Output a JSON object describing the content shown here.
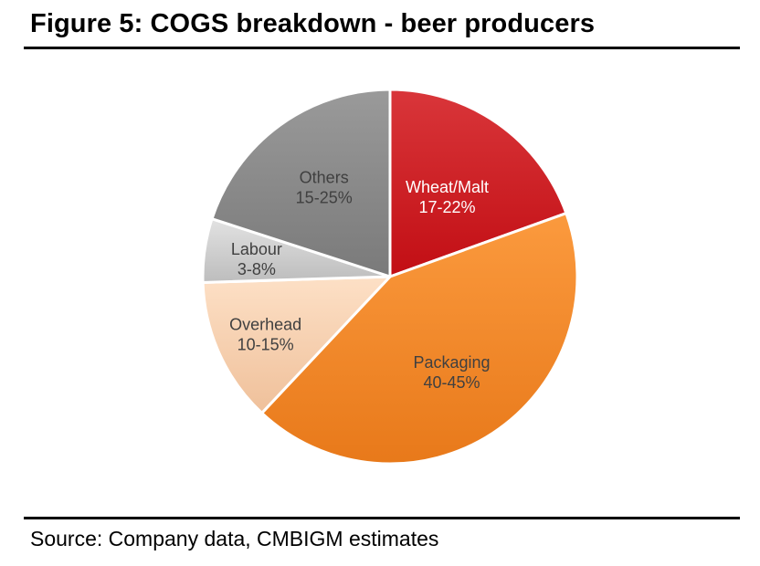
{
  "figure": {
    "title": "Figure 5: COGS breakdown - beer producers",
    "source": "Source: Company data, CMBIGM estimates"
  },
  "chart_data": {
    "type": "pie",
    "title": "",
    "slices": [
      {
        "label": "Wheat/Malt",
        "range_text": "17-22%",
        "value": 19.5,
        "color": "#c8141a",
        "label_color": "#ffffff"
      },
      {
        "label": "Packaging",
        "range_text": "40-45%",
        "value": 42.5,
        "color": "#f5851f",
        "label_color": "#404040"
      },
      {
        "label": "Overhead",
        "range_text": "10-15%",
        "value": 12.5,
        "color": "#f8c9a0",
        "label_color": "#404040"
      },
      {
        "label": "Labour",
        "range_text": "3-8%",
        "value": 5.5,
        "color": "#c8c8c8",
        "label_color": "#404040"
      },
      {
        "label": "Others",
        "range_text": "15-25%",
        "value": 20,
        "color": "#8a8a8a",
        "label_color": "#404040"
      }
    ],
    "start_angle": "12 o'clock",
    "direction": "clockwise",
    "legend": "none"
  }
}
